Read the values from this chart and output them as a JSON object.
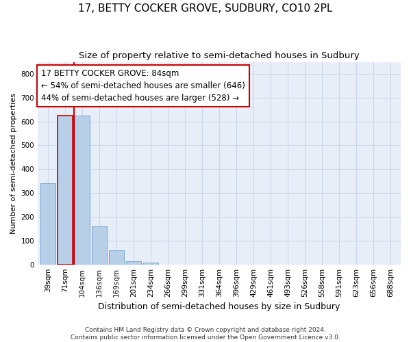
{
  "title": "17, BETTY COCKER GROVE, SUDBURY, CO10 2PL",
  "subtitle": "Size of property relative to semi-detached houses in Sudbury",
  "xlabel": "Distribution of semi-detached houses by size in Sudbury",
  "ylabel": "Number of semi-detached properties",
  "footer1": "Contains HM Land Registry data © Crown copyright and database right 2024.",
  "footer2": "Contains public sector information licensed under the Open Government Licence v3.0.",
  "annotation_title": "17 BETTY COCKER GROVE: 84sqm",
  "annotation_line1": "← 54% of semi-detached houses are smaller (646)",
  "annotation_line2": "44% of semi-detached houses are larger (528) →",
  "categories": [
    "39sqm",
    "71sqm",
    "104sqm",
    "136sqm",
    "169sqm",
    "201sqm",
    "234sqm",
    "266sqm",
    "299sqm",
    "331sqm",
    "364sqm",
    "396sqm",
    "429sqm",
    "461sqm",
    "493sqm",
    "526sqm",
    "558sqm",
    "591sqm",
    "623sqm",
    "656sqm",
    "688sqm"
  ],
  "values": [
    340,
    625,
    625,
    160,
    60,
    14,
    8,
    0,
    0,
    0,
    0,
    0,
    0,
    0,
    0,
    0,
    0,
    0,
    0,
    0,
    0
  ],
  "bar_color": "#b8cfe8",
  "bar_edge_color": "#6699cc",
  "highlighted_bar": 1,
  "highlight_edge_color": "#cc0000",
  "vline_color": "#cc0000",
  "vline_position": 1.5,
  "ylim": [
    0,
    850
  ],
  "yticks": [
    0,
    100,
    200,
    300,
    400,
    500,
    600,
    700,
    800
  ],
  "grid_color": "#c8d4e8",
  "background_color": "#e8eef8",
  "title_fontsize": 11,
  "subtitle_fontsize": 9.5,
  "annotation_fontsize": 8.5,
  "tick_fontsize": 7.5,
  "ylabel_fontsize": 8,
  "xlabel_fontsize": 9,
  "footer_fontsize": 6.5
}
